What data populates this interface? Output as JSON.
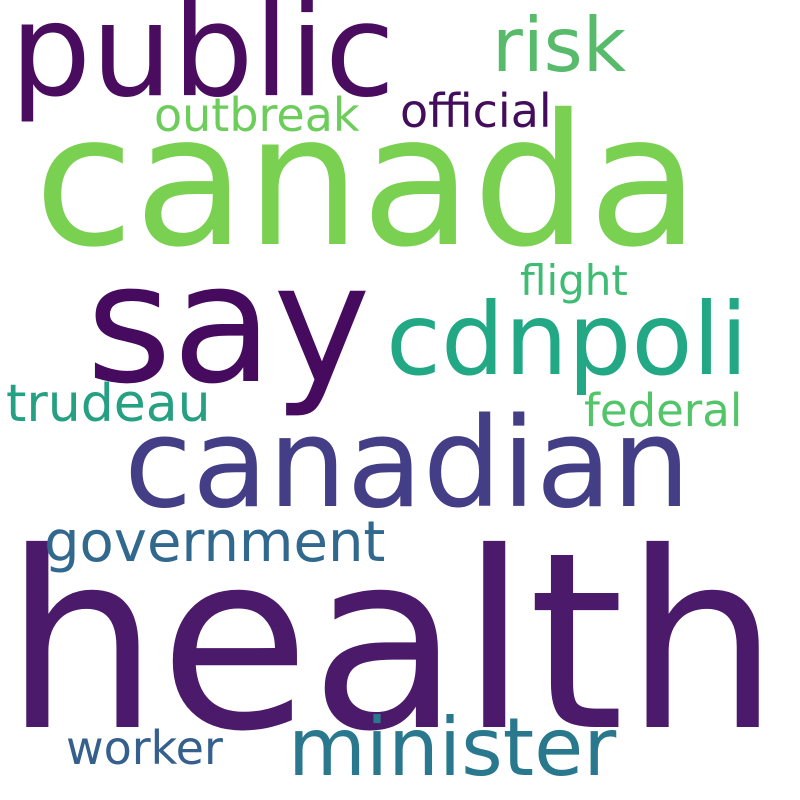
{
  "cloud": {
    "background": "#ffffff",
    "words": {
      "health": {
        "text": "health",
        "color": "#4b1a6b"
      },
      "canada": {
        "text": "canada",
        "color": "#7ad151"
      },
      "say": {
        "text": "say",
        "color": "#460b5e"
      },
      "public": {
        "text": "public",
        "color": "#4a0c5f"
      },
      "canadian": {
        "text": "canadian",
        "color": "#433e85"
      },
      "cdnpoli": {
        "text": "cdnpoli",
        "color": "#22a884"
      },
      "minister": {
        "text": "minister",
        "color": "#2a788e"
      },
      "risk": {
        "text": "risk",
        "color": "#57bb6b"
      },
      "government": {
        "text": "government",
        "color": "#31688e"
      },
      "trudeau": {
        "text": "trudeau",
        "color": "#25a082"
      },
      "worker": {
        "text": "worker",
        "color": "#35608d"
      },
      "federal": {
        "text": "federal",
        "color": "#52c569"
      },
      "outbreak": {
        "text": "outbreak",
        "color": "#6ccd5a"
      },
      "official": {
        "text": "official",
        "color": "#440d5c"
      },
      "flight": {
        "text": "flight",
        "color": "#3fbc73"
      }
    }
  }
}
